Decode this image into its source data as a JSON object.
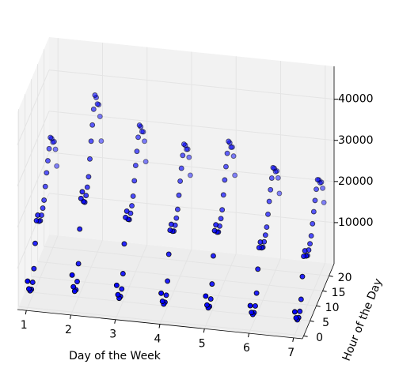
{
  "chart_data": {
    "type": "scatter3d",
    "xlabel": "Day of the Week",
    "ylabel": "Hour of the Day",
    "x": [
      1,
      2,
      3,
      4,
      5,
      6,
      7
    ],
    "y": [
      0,
      1,
      2,
      3,
      4,
      5,
      6,
      7,
      8,
      9,
      10,
      11,
      12,
      13,
      14,
      15,
      16,
      17,
      18,
      19,
      20,
      21,
      22,
      23
    ],
    "values": [
      [
        6400,
        3800,
        2600,
        2200,
        3200,
        5800,
        11200,
        16000,
        16600,
        14400,
        13800,
        14400,
        15400,
        16600,
        19200,
        21800,
        24000,
        26200,
        28200,
        27200,
        25600,
        25000,
        22400,
        17600
      ],
      [
        9000,
        5400,
        3600,
        3200,
        4500,
        8100,
        15800,
        22500,
        23400,
        20300,
        19400,
        20300,
        21600,
        23400,
        27000,
        30600,
        33800,
        36900,
        39600,
        38300,
        36000,
        35100,
        31500,
        24800
      ],
      [
        7600,
        4600,
        3000,
        2700,
        3800,
        6800,
        13300,
        19000,
        19800,
        17100,
        16300,
        17100,
        18200,
        19800,
        22800,
        25800,
        28500,
        31200,
        33400,
        32300,
        30400,
        29600,
        26600,
        20900
      ],
      [
        6800,
        4100,
        2700,
        2400,
        3400,
        6100,
        11900,
        17000,
        17700,
        15300,
        14600,
        15300,
        16300,
        17700,
        20400,
        23100,
        25500,
        27900,
        29900,
        28900,
        27200,
        26500,
        23800,
        18700
      ],
      [
        7200,
        4300,
        2900,
        2500,
        3600,
        6500,
        12600,
        18000,
        18700,
        16200,
        15500,
        16200,
        17300,
        18700,
        21600,
        24500,
        27000,
        29500,
        31700,
        30600,
        28800,
        28100,
        25200,
        19800
      ],
      [
        6000,
        3600,
        2400,
        2100,
        3000,
        5400,
        10500,
        15000,
        15600,
        13500,
        12900,
        13500,
        14400,
        15600,
        18000,
        20400,
        22500,
        24600,
        26400,
        25500,
        24000,
        23400,
        21000,
        16500
      ],
      [
        5600,
        3400,
        2200,
        2000,
        2800,
        5000,
        9800,
        14000,
        14600,
        12600,
        12000,
        12600,
        13400,
        14600,
        16800,
        19000,
        21000,
        23000,
        24600,
        23800,
        22400,
        21800,
        19600,
        15400
      ]
    ],
    "color": "#0000ff",
    "xlim": [
      0.8,
      7.2
    ],
    "xticks": [
      1,
      2,
      3,
      4,
      5,
      6,
      7
    ],
    "ylim": [
      -1,
      24
    ],
    "yticks": [
      0,
      5,
      10,
      15,
      20
    ],
    "zlim": [
      0,
      48000
    ],
    "zticks": [
      10000,
      20000,
      30000,
      40000
    ],
    "grid": true
  }
}
